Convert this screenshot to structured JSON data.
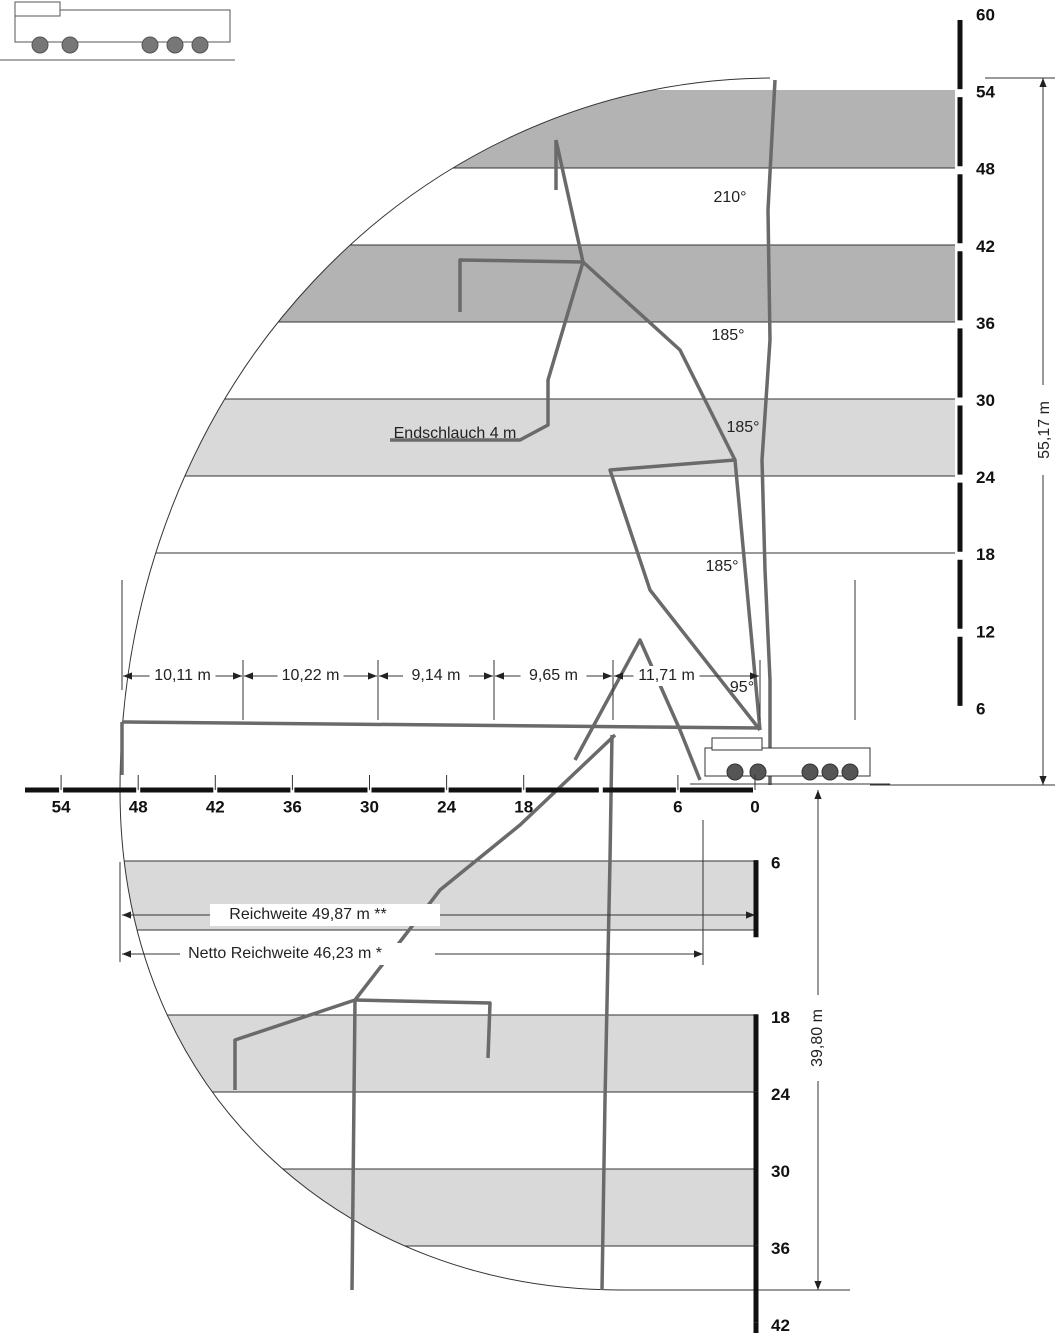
{
  "scale_up": {
    "labels": [
      60,
      54,
      48,
      42,
      36,
      30,
      24,
      18,
      12,
      6
    ]
  },
  "scale_x": {
    "labels": [
      54,
      48,
      42,
      36,
      30,
      24,
      18,
      6,
      0
    ]
  },
  "scale_down": {
    "labels": [
      6,
      18,
      24,
      30,
      36,
      42
    ]
  },
  "boom_sections": [
    "10,11 m",
    "10,22 m",
    "9,14 m",
    "9,65 m",
    "11,71 m"
  ],
  "angles": [
    "210°",
    "185°",
    "185°",
    "185°",
    "95°"
  ],
  "hose": "Endschlauch 4 m",
  "reach": "Reichweite 49,87 m **",
  "net_reach": "Netto Reichweite 46,23 m *",
  "height": "55,17 m",
  "depth": "39,80 m"
}
